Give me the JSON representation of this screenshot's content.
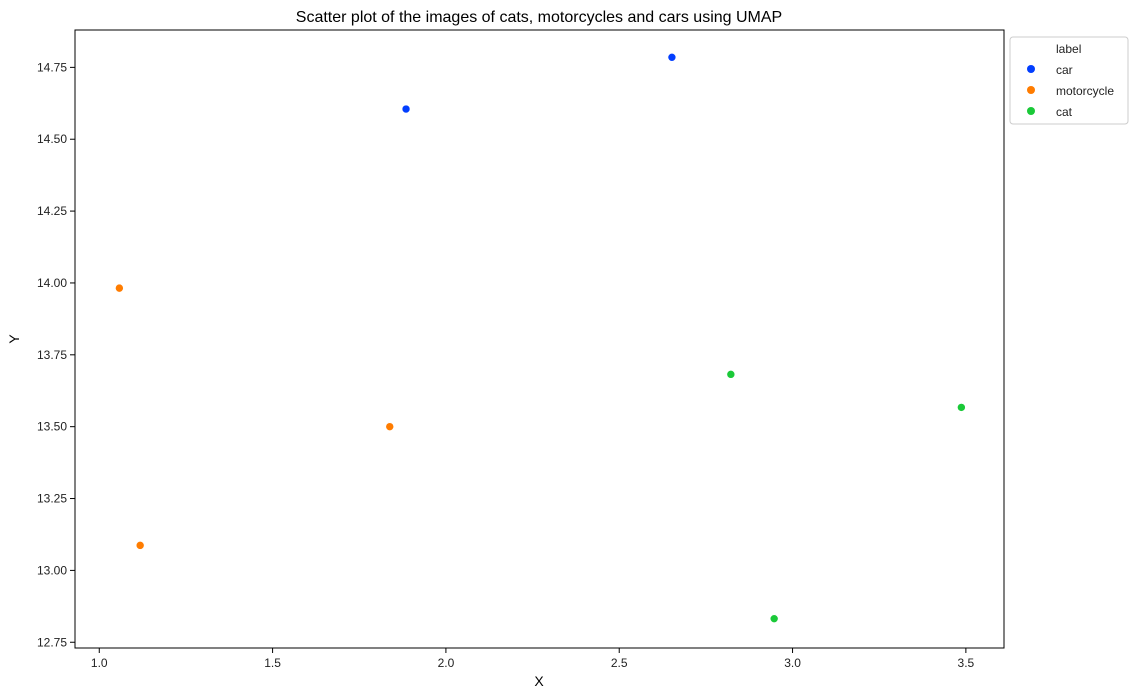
{
  "chart_data": {
    "type": "scatter",
    "title": "Scatter plot of the images of cats, motorcycles and cars using UMAP",
    "xlabel": "X",
    "ylabel": "Y",
    "xlim": [
      0.93,
      3.61
    ],
    "ylim": [
      12.73,
      14.88
    ],
    "xticks": [
      1.0,
      1.5,
      2.0,
      2.5,
      3.0,
      3.5
    ],
    "xtick_labels": [
      "1.0",
      "1.5",
      "2.0",
      "2.5",
      "3.0",
      "3.5"
    ],
    "yticks": [
      12.75,
      13.0,
      13.25,
      13.5,
      13.75,
      14.0,
      14.25,
      14.5,
      14.75
    ],
    "ytick_labels": [
      "12.75",
      "13.00",
      "13.25",
      "13.50",
      "13.75",
      "14.00",
      "14.25",
      "14.50",
      "14.75"
    ],
    "grid": false,
    "legend": {
      "title": "label",
      "placement": "outside-top-right"
    },
    "series": [
      {
        "name": "car",
        "color": "#023eff",
        "points": [
          {
            "x": 1.885,
            "y": 14.605
          },
          {
            "x": 2.652,
            "y": 14.785
          }
        ]
      },
      {
        "name": "motorcycle",
        "color": "#ff7c00",
        "points": [
          {
            "x": 1.058,
            "y": 13.982
          },
          {
            "x": 1.838,
            "y": 13.5
          },
          {
            "x": 1.118,
            "y": 13.087
          }
        ]
      },
      {
        "name": "cat",
        "color": "#1ac938",
        "points": [
          {
            "x": 2.822,
            "y": 13.682
          },
          {
            "x": 3.487,
            "y": 13.567
          },
          {
            "x": 2.947,
            "y": 12.832
          }
        ]
      }
    ]
  }
}
